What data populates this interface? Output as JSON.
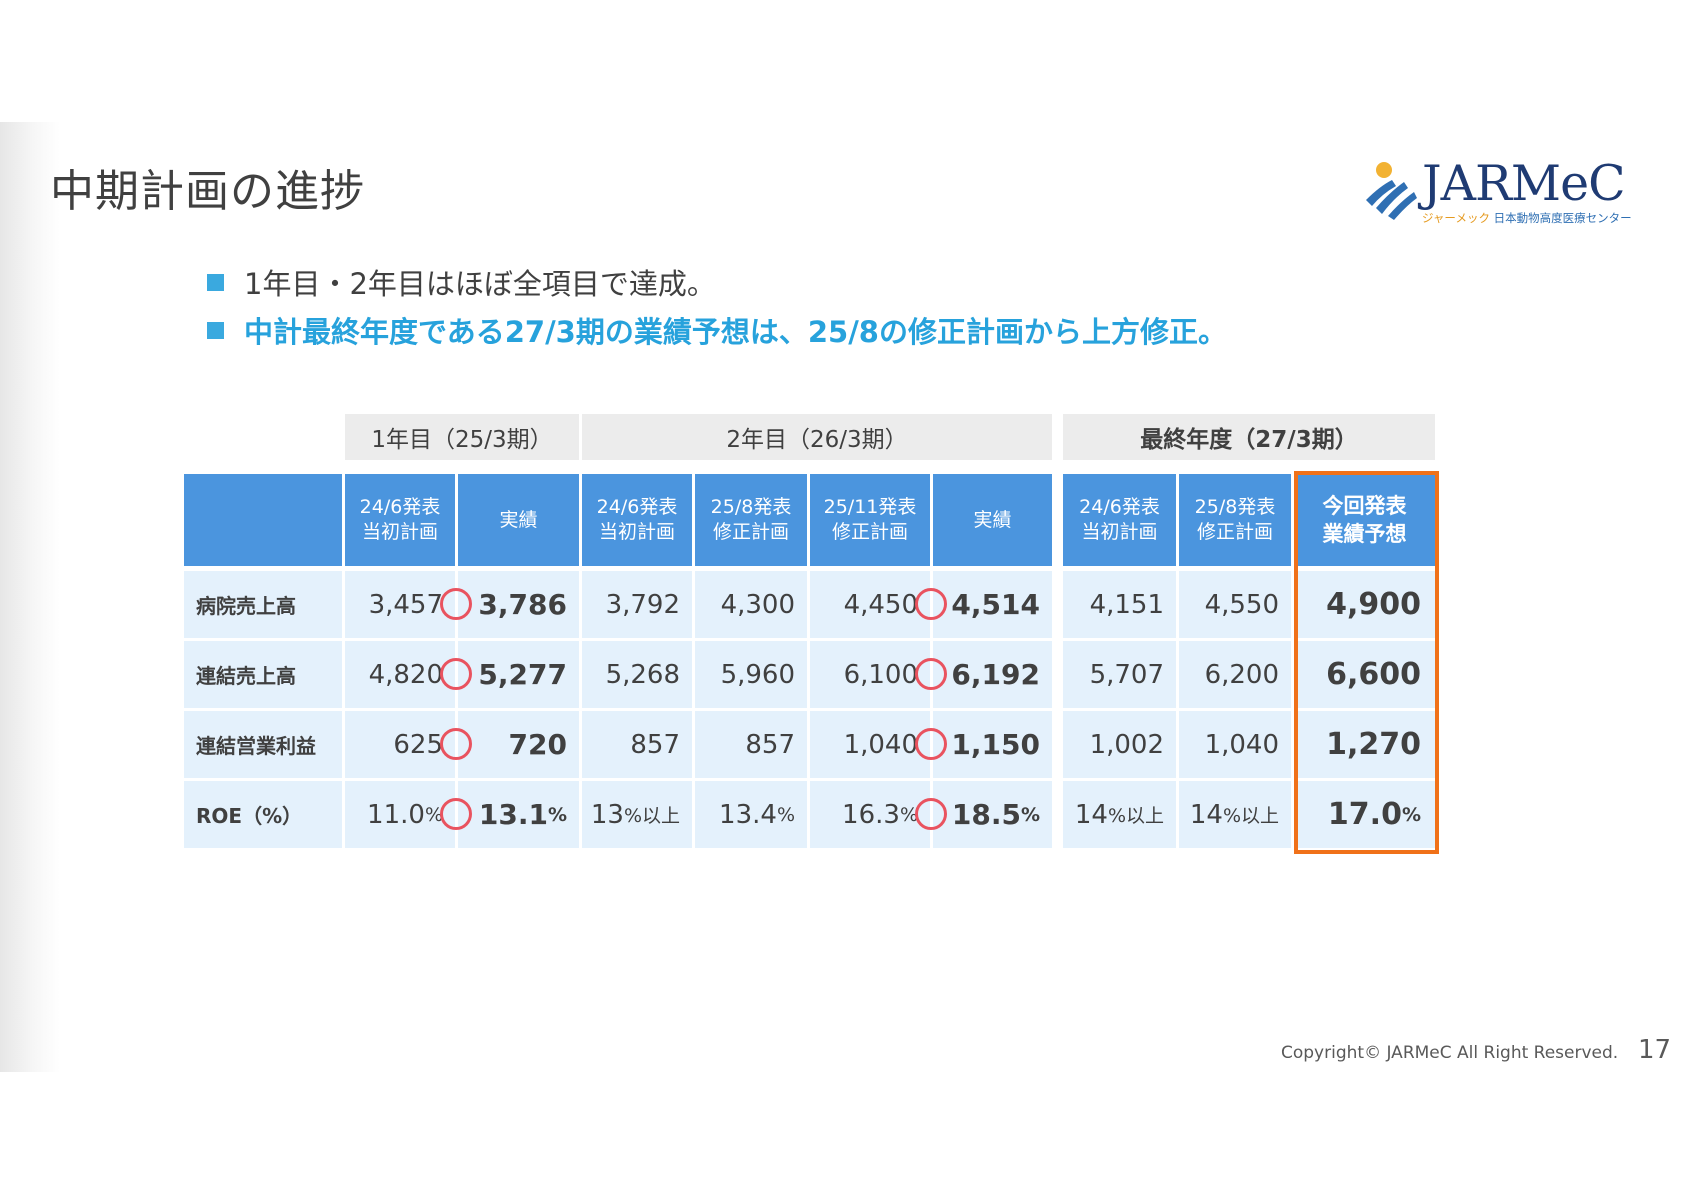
{
  "title": "中期計画の進捗",
  "logo": {
    "word": "JARMeC",
    "sub_kana": "ジャーメック",
    "sub_name": "日本動物高度医療センター"
  },
  "bullets": [
    "1年目・2年目はほぼ全項目で達成。",
    "中計最終年度である27/3期の業績予想は、25/8の修正計画から上方修正。"
  ],
  "table": {
    "groups": [
      "1年目（25/3期）",
      "2年目（26/3期）",
      "最終年度（27/3期）"
    ],
    "columns": [
      "24/6発表\n当初計画",
      "実績",
      "24/6発表\n当初計画",
      "25/8発表\n修正計画",
      "25/11発表\n修正計画",
      "実績",
      "24/6発表\n当初計画",
      "25/8発表\n修正計画",
      "今回発表\n業績予想"
    ],
    "rows": [
      {
        "label": "病院売上高",
        "values": [
          "3,457",
          "3,786",
          "3,792",
          "4,300",
          "4,450",
          "4,514",
          "4,151",
          "4,550",
          "4,900"
        ]
      },
      {
        "label": "連結売上高",
        "values": [
          "4,820",
          "5,277",
          "5,268",
          "5,960",
          "6,100",
          "6,192",
          "5,707",
          "6,200",
          "6,600"
        ]
      },
      {
        "label": "連結営業利益",
        "values": [
          "625",
          "720",
          "857",
          "857",
          "1,040",
          "1,150",
          "1,002",
          "1,040",
          "1,270"
        ]
      },
      {
        "label": "ROE（%）",
        "values": [
          "11.0|%",
          "13.1|%",
          "13|%以上",
          "13.4|%",
          "16.3|%",
          "18.5|%",
          "14|%以上",
          "14|%以上",
          "17.0|%"
        ]
      }
    ],
    "achieved_mark": "〇",
    "accent_color": "#f07119",
    "header_color": "#4b95de"
  },
  "footer": {
    "copyright": "Copyright© JARMeC All Right Reserved.",
    "page": "17"
  }
}
